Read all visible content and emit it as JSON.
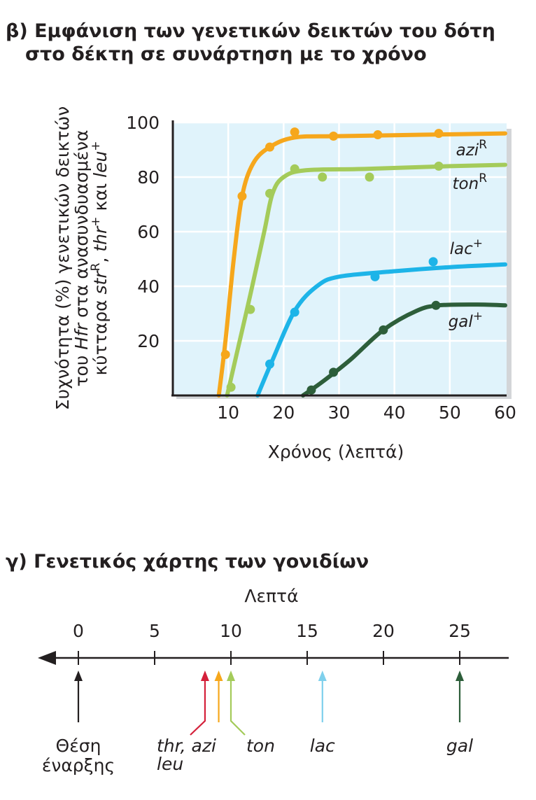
{
  "panel_b": {
    "title_line1": "β) Εμφάνιση των γενετικών δεικτών του δότη",
    "title_line2": "στο δέκτη σε συνάρτηση με το χρόνο"
  },
  "panel_c": {
    "title": "γ) Γενετικός χάρτης των γονιδίων",
    "axis_label": "Λεπτά",
    "ticks": [
      0,
      5,
      10,
      15,
      20,
      25
    ],
    "start_label_line1": "Θέση",
    "start_label_line2": "έναρξης",
    "genes": [
      {
        "label": "thr, azi",
        "label2": "leu",
        "position": 8.3,
        "color": "#d4203a"
      },
      {
        "label": "",
        "position": 9.2,
        "color": "#f6a71c"
      },
      {
        "label": "ton",
        "position": 10.0,
        "color": "#a4cb5a"
      },
      {
        "label": "lac",
        "position": 16.0,
        "color": "#7fd0ec"
      },
      {
        "label": "gal",
        "position": 25.0,
        "color": "#2d5e3a"
      }
    ]
  },
  "chart_data": {
    "type": "line",
    "title": "β) Εμφάνιση των γενετικών δεικτών του δότη στο δέκτη σε συνάρτηση με το χρόνο",
    "xlabel": "Χρόνος (λεπτά)",
    "ylabel_line1": "Συχνότητα (%) γενετικών δεικτών",
    "ylabel_line2": "του Hfr στα ανασυνδυασμένα",
    "ylabel_line3": "κύτταρα strR, thr+ και leu+",
    "xlim": [
      0,
      60
    ],
    "ylim": [
      0,
      100
    ],
    "x_ticks": [
      10,
      20,
      30,
      40,
      50,
      60
    ],
    "y_ticks": [
      20,
      40,
      60,
      80,
      100
    ],
    "series": [
      {
        "name": "aziR",
        "base": "azi",
        "sup": "R",
        "color": "#f6a71c",
        "points": [
          [
            9.5,
            15
          ],
          [
            12.5,
            73
          ],
          [
            17.5,
            91
          ],
          [
            22,
            96.5
          ],
          [
            29,
            95
          ],
          [
            37,
            95.5
          ],
          [
            48,
            96
          ]
        ],
        "curve": [
          [
            8.3,
            0
          ],
          [
            9.5,
            20
          ],
          [
            11,
            50
          ],
          [
            12.5,
            73
          ],
          [
            14.5,
            85
          ],
          [
            17.5,
            91
          ],
          [
            22,
            94.5
          ],
          [
            30,
            95
          ],
          [
            45,
            95.5
          ],
          [
            60,
            96
          ]
        ]
      },
      {
        "name": "tonR",
        "base": "ton",
        "sup": "R",
        "color": "#a4cb5a",
        "points": [
          [
            10.5,
            3
          ],
          [
            14,
            31.5
          ],
          [
            17.5,
            74
          ],
          [
            22,
            83
          ],
          [
            27,
            80
          ],
          [
            35.5,
            80
          ],
          [
            48,
            84
          ]
        ],
        "curve": [
          [
            9.8,
            0
          ],
          [
            11.5,
            15
          ],
          [
            14,
            37
          ],
          [
            16.5,
            60
          ],
          [
            18,
            74
          ],
          [
            20,
            80
          ],
          [
            24,
            82.5
          ],
          [
            35,
            83
          ],
          [
            50,
            84
          ],
          [
            60,
            84.5
          ]
        ]
      },
      {
        "name": "lac+",
        "base": "lac",
        "sup": "+",
        "color": "#1db4e8",
        "points": [
          [
            17.5,
            11.5
          ],
          [
            22,
            30.5
          ],
          [
            36.5,
            43.5
          ],
          [
            47,
            49
          ]
        ],
        "curve": [
          [
            15.3,
            0
          ],
          [
            18,
            13
          ],
          [
            22,
            31
          ],
          [
            26,
            40
          ],
          [
            30,
            43.5
          ],
          [
            40,
            45.5
          ],
          [
            50,
            47
          ],
          [
            60,
            48
          ]
        ]
      },
      {
        "name": "gal+",
        "base": "gal",
        "sup": "+",
        "color": "#2d5e3a",
        "points": [
          [
            25,
            2
          ],
          [
            29,
            8.5
          ],
          [
            38,
            24
          ],
          [
            47.5,
            33
          ]
        ],
        "curve": [
          [
            23.5,
            0
          ],
          [
            27,
            5
          ],
          [
            32,
            13
          ],
          [
            38,
            24
          ],
          [
            44,
            31
          ],
          [
            48,
            33
          ],
          [
            55,
            33.3
          ],
          [
            60,
            33
          ]
        ]
      }
    ]
  }
}
